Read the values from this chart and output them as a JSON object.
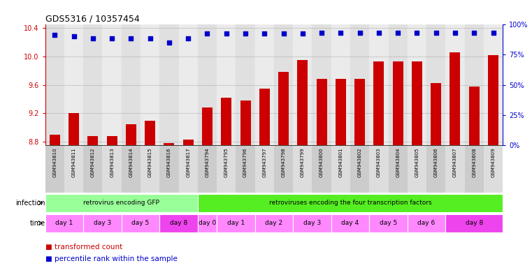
{
  "title": "GDS5316 / 10357454",
  "samples": [
    "GSM943810",
    "GSM943811",
    "GSM943812",
    "GSM943813",
    "GSM943814",
    "GSM943815",
    "GSM943816",
    "GSM943817",
    "GSM943794",
    "GSM943795",
    "GSM943796",
    "GSM943797",
    "GSM943798",
    "GSM943799",
    "GSM943800",
    "GSM943801",
    "GSM943802",
    "GSM943803",
    "GSM943804",
    "GSM943805",
    "GSM943806",
    "GSM943807",
    "GSM943808",
    "GSM943809"
  ],
  "bar_values": [
    8.9,
    9.2,
    8.88,
    8.88,
    9.05,
    9.1,
    8.78,
    8.83,
    9.28,
    9.42,
    9.38,
    9.55,
    9.78,
    9.95,
    9.68,
    9.68,
    9.68,
    9.93,
    9.93,
    9.93,
    9.62,
    10.05,
    9.58,
    10.02
  ],
  "percentile_values": [
    91,
    90,
    88,
    88,
    88,
    88,
    85,
    88,
    92,
    92,
    92,
    92,
    92,
    92,
    93,
    93,
    93,
    93,
    93,
    93,
    93,
    93,
    93,
    93
  ],
  "bar_color": "#cc0000",
  "percentile_color": "#0000cc",
  "ylim_left": [
    8.75,
    10.45
  ],
  "ylim_right": [
    0,
    100
  ],
  "yticks_left": [
    8.8,
    9.2,
    9.6,
    10.0,
    10.4
  ],
  "yticks_right": [
    0,
    25,
    50,
    75,
    100
  ],
  "infection_groups": [
    {
      "label": "retrovirus encoding GFP",
      "start": 0,
      "end": 8,
      "color": "#99ff99"
    },
    {
      "label": "retroviruses encoding the four transcription factors",
      "start": 8,
      "end": 24,
      "color": "#55ee22"
    }
  ],
  "time_groups": [
    {
      "label": "day 1",
      "start": 0,
      "end": 2,
      "color": "#ff88ff"
    },
    {
      "label": "day 3",
      "start": 2,
      "end": 4,
      "color": "#ff88ff"
    },
    {
      "label": "day 5",
      "start": 4,
      "end": 6,
      "color": "#ff88ff"
    },
    {
      "label": "day 8",
      "start": 6,
      "end": 8,
      "color": "#ee44ee"
    },
    {
      "label": "day 0",
      "start": 8,
      "end": 9,
      "color": "#ff88ff"
    },
    {
      "label": "day 1",
      "start": 9,
      "end": 11,
      "color": "#ff88ff"
    },
    {
      "label": "day 2",
      "start": 11,
      "end": 13,
      "color": "#ff88ff"
    },
    {
      "label": "day 3",
      "start": 13,
      "end": 15,
      "color": "#ff88ff"
    },
    {
      "label": "day 4",
      "start": 15,
      "end": 17,
      "color": "#ff88ff"
    },
    {
      "label": "day 5",
      "start": 17,
      "end": 19,
      "color": "#ff88ff"
    },
    {
      "label": "day 6",
      "start": 19,
      "end": 21,
      "color": "#ff88ff"
    },
    {
      "label": "day 8",
      "start": 21,
      "end": 24,
      "color": "#ee44ee"
    }
  ],
  "bg_color": "#ffffff",
  "grid_color": "#888888",
  "label_color_red": "#cc0000",
  "label_color_blue": "#0000cc"
}
